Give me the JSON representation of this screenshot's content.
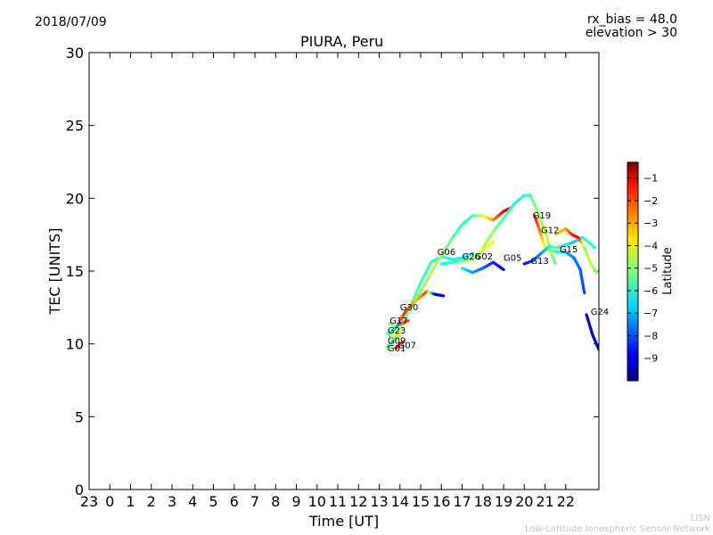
{
  "header": {
    "date": "2018/07/09",
    "rx_bias": "rx_bias = 48.0",
    "elevation": "elevation > 30"
  },
  "footer": {
    "line1": "LISN",
    "line2": "Low-Latitude Ionospheric Sensor Network"
  },
  "chart_data": {
    "type": "scatter",
    "title": "PIURA, Peru",
    "xlabel": "Time [UT]",
    "ylabel": "TEC [UNITS]",
    "xlim": [
      -1,
      23.6
    ],
    "ylim": [
      0,
      30
    ],
    "x_ticks": [
      -1,
      0,
      1,
      2,
      3,
      4,
      5,
      6,
      7,
      8,
      9,
      10,
      11,
      12,
      13,
      14,
      15,
      16,
      17,
      18,
      19,
      20,
      21,
      22
    ],
    "x_tick_labels": [
      "23",
      "0",
      "1",
      "2",
      "3",
      "4",
      "5",
      "6",
      "7",
      "8",
      "9",
      "10",
      "11",
      "12",
      "13",
      "14",
      "15",
      "16",
      "17",
      "18",
      "19",
      "20",
      "21",
      "22"
    ],
    "y_ticks": [
      0,
      5,
      10,
      15,
      20,
      25,
      30
    ],
    "y_tick_labels": [
      "0",
      "5",
      "10",
      "15",
      "20",
      "25",
      "30"
    ],
    "colorbar": {
      "label": "Latitude",
      "min": -10,
      "max": -0.3,
      "ticks": [
        -9,
        -8,
        -7,
        -6,
        -5,
        -4,
        -3,
        -2,
        -1
      ],
      "tick_labels": [
        "−9",
        "−8",
        "−7",
        "−6",
        "−5",
        "−4",
        "−3",
        "−2",
        "−1"
      ],
      "colormap": "jet"
    },
    "series": [
      {
        "name": "G06",
        "label": {
          "x": 15.8,
          "y": 16.1
        },
        "points": [
          [
            13.5,
            9.8,
            -5.0
          ],
          [
            14.0,
            11.0,
            -4.5
          ],
          [
            14.5,
            12.6,
            -5.2
          ],
          [
            15.0,
            14.2,
            -5.8
          ],
          [
            15.5,
            15.6,
            -5.8
          ],
          [
            16.0,
            16.0,
            -6.1
          ],
          [
            16.5,
            15.8,
            -6.2
          ],
          [
            17.0,
            15.9,
            -6.4
          ],
          [
            17.5,
            16.2,
            -6.5
          ]
        ]
      },
      {
        "name": "G02",
        "label": {
          "x": 17.6,
          "y": 15.8
        },
        "points": [
          [
            13.5,
            10.5,
            -6.0
          ],
          [
            14.2,
            11.8,
            -5.5
          ],
          [
            15.0,
            13.6,
            -5.0
          ],
          [
            15.8,
            15.6,
            -4.6
          ],
          [
            16.5,
            17.2,
            -5.4
          ],
          [
            17.0,
            18.2,
            -6.0
          ],
          [
            17.5,
            18.8,
            -5.9
          ],
          [
            18.0,
            18.8,
            -4.5
          ],
          [
            18.5,
            18.5,
            -3.0
          ],
          [
            19.0,
            19.1,
            -1.5
          ],
          [
            19.3,
            19.3,
            -1.0
          ]
        ]
      },
      {
        "name": "G26",
        "label": {
          "x": 17.0,
          "y": 15.8
        },
        "points": [
          [
            16.0,
            15.5,
            -6.3
          ],
          [
            16.5,
            15.6,
            -6.1
          ],
          [
            17.0,
            15.7,
            -5.2
          ],
          [
            17.5,
            15.8,
            -4.8
          ],
          [
            18.0,
            16.4,
            -4.3
          ],
          [
            18.5,
            17.0,
            -4.0
          ]
        ]
      },
      {
        "name": "G05",
        "label": {
          "x": 19.0,
          "y": 15.7
        },
        "points": [
          [
            17.0,
            15.2,
            -6.5
          ],
          [
            17.5,
            14.9,
            -7.2
          ],
          [
            18.0,
            15.2,
            -7.8
          ],
          [
            18.5,
            15.6,
            -8.4
          ],
          [
            19.0,
            15.1,
            -9.0
          ]
        ]
      },
      {
        "name": "G19",
        "label": {
          "x": 20.4,
          "y": 18.6
        },
        "points": [
          [
            18.0,
            16.6,
            -4.5
          ],
          [
            18.5,
            17.7,
            -5.0
          ],
          [
            19.0,
            18.6,
            -5.6
          ],
          [
            19.5,
            19.6,
            -6.0
          ],
          [
            20.0,
            20.2,
            -6.1
          ],
          [
            20.3,
            20.2,
            -5.8
          ],
          [
            20.6,
            19.2,
            -5.0
          ],
          [
            21.0,
            17.8,
            -4.5
          ],
          [
            21.3,
            16.2,
            -4.8
          ],
          [
            21.5,
            15.5,
            -5.5
          ]
        ]
      },
      {
        "name": "G12",
        "label": {
          "x": 20.8,
          "y": 17.6
        },
        "points": [
          [
            20.5,
            18.8,
            -1.5
          ],
          [
            20.8,
            17.5,
            -3.0
          ],
          [
            21.0,
            16.6,
            -4.0
          ],
          [
            21.3,
            16.4,
            -5.0
          ],
          [
            21.6,
            16.3,
            -6.0
          ],
          [
            22.0,
            16.3,
            -7.0
          ],
          [
            22.4,
            15.9,
            -7.6
          ],
          [
            22.7,
            15.1,
            -7.8
          ],
          [
            22.9,
            13.5,
            -8.1
          ]
        ]
      },
      {
        "name": "G13",
        "label": {
          "x": 20.3,
          "y": 15.5
        },
        "points": [
          [
            20.0,
            15.5,
            -8.8
          ],
          [
            20.4,
            15.7,
            -8.2
          ],
          [
            20.8,
            16.2,
            -7.5
          ],
          [
            21.2,
            16.7,
            -6.5
          ],
          [
            21.6,
            16.6,
            -5.5
          ],
          [
            22.0,
            16.8,
            -6.0
          ],
          [
            22.4,
            17.0,
            -7.0
          ],
          [
            22.8,
            17.3,
            -6.3
          ],
          [
            23.1,
            17.0,
            -5.8
          ],
          [
            23.4,
            16.6,
            -6.2
          ]
        ]
      },
      {
        "name": "G15",
        "label": {
          "x": 21.7,
          "y": 16.3
        },
        "points": [
          [
            21.5,
            17.5,
            -3.5
          ],
          [
            22.0,
            17.9,
            -3.2
          ],
          [
            22.3,
            17.5,
            -2.0
          ],
          [
            22.6,
            17.3,
            -1.2
          ],
          [
            22.9,
            16.6,
            -5.0
          ],
          [
            23.2,
            15.5,
            -4.5
          ],
          [
            23.5,
            14.9,
            -5.0
          ]
        ]
      },
      {
        "name": "G24",
        "label": {
          "x": 23.2,
          "y": 12.0
        },
        "points": [
          [
            23.0,
            12.0,
            -9.2
          ],
          [
            23.3,
            10.6,
            -9.5
          ],
          [
            23.6,
            9.6,
            -9.7
          ]
        ]
      },
      {
        "name": "G30",
        "label": {
          "x": 14.0,
          "y": 12.3
        },
        "points": [
          [
            13.6,
            10.6,
            -4.5
          ],
          [
            14.0,
            11.6,
            -2.5
          ],
          [
            14.3,
            12.3,
            -2.0
          ],
          [
            14.8,
            13.0,
            -3.5
          ],
          [
            15.3,
            13.6,
            -2.0
          ],
          [
            15.7,
            13.4,
            -9.0
          ],
          [
            16.1,
            13.3,
            -9.5
          ]
        ]
      },
      {
        "name": "G17",
        "label": {
          "x": 13.5,
          "y": 11.4
        },
        "points": [
          [
            13.5,
            11.4,
            -6.0
          ],
          [
            13.8,
            11.2,
            -4.0
          ],
          [
            14.1,
            11.4,
            -2.8
          ],
          [
            14.4,
            11.6,
            -2.0
          ]
        ]
      },
      {
        "name": "G23",
        "label": {
          "x": 13.4,
          "y": 10.7
        },
        "points": [
          [
            13.4,
            10.7,
            -5.5
          ],
          [
            13.7,
            11.0,
            -6.5
          ],
          [
            14.0,
            11.4,
            -7.5
          ]
        ]
      },
      {
        "name": "G09",
        "label": {
          "x": 13.4,
          "y": 10.0
        },
        "points": [
          [
            13.4,
            9.8,
            -6.8
          ],
          [
            13.7,
            10.2,
            -6.0
          ],
          [
            14.0,
            10.6,
            -4.5
          ]
        ]
      },
      {
        "name": "G07",
        "label": {
          "x": 13.9,
          "y": 9.7
        },
        "points": [
          [
            13.8,
            9.7,
            -1.5
          ],
          [
            14.1,
            10.1,
            -2.5
          ]
        ]
      },
      {
        "name": "G01",
        "label": {
          "x": 13.4,
          "y": 9.5
        },
        "points": [
          [
            13.4,
            9.6,
            -5.0
          ],
          [
            13.6,
            9.9,
            -4.5
          ]
        ]
      }
    ]
  }
}
